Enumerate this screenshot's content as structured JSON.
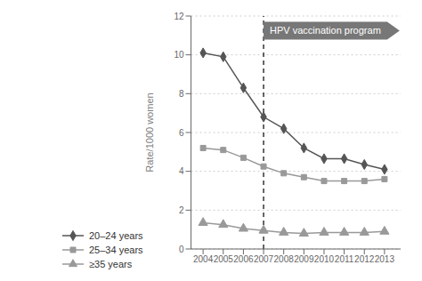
{
  "chart_data": {
    "type": "line",
    "x": [
      2004,
      2005,
      2006,
      2007,
      2008,
      2009,
      2010,
      2011,
      2012,
      2013
    ],
    "series": [
      {
        "name": "20–24 years",
        "color": "#555555",
        "marker": "diamond",
        "values": [
          10.1,
          9.9,
          8.3,
          6.8,
          6.2,
          5.2,
          4.65,
          4.65,
          4.35,
          4.1
        ]
      },
      {
        "name": "25–34 years",
        "color": "#999999",
        "marker": "square",
        "values": [
          5.2,
          5.1,
          4.7,
          4.25,
          3.9,
          3.7,
          3.5,
          3.5,
          3.5,
          3.6
        ]
      },
      {
        "name": "≥35 years",
        "color": "#999999",
        "marker": "triangle",
        "values": [
          1.35,
          1.25,
          1.05,
          0.95,
          0.85,
          0.8,
          0.85,
          0.85,
          0.85,
          0.9
        ]
      }
    ],
    "ylabel": "Rate/1000 women",
    "xlim": [
      2003.4,
      2013.8
    ],
    "xticks": [
      2004,
      2005,
      2006,
      2007,
      2008,
      2009,
      2010,
      2011,
      2012,
      2013
    ],
    "ylim": [
      0,
      12
    ],
    "yticks": [
      0,
      2,
      4,
      6,
      8,
      10,
      12
    ],
    "grid": true,
    "legend": "bottom",
    "annotations": [
      {
        "type": "vline",
        "x": 2007
      },
      {
        "type": "arrow",
        "text": "HPV vaccination program",
        "x": 2007,
        "x_end": 2013.75,
        "y": 11.25,
        "color": "#777777"
      }
    ]
  }
}
